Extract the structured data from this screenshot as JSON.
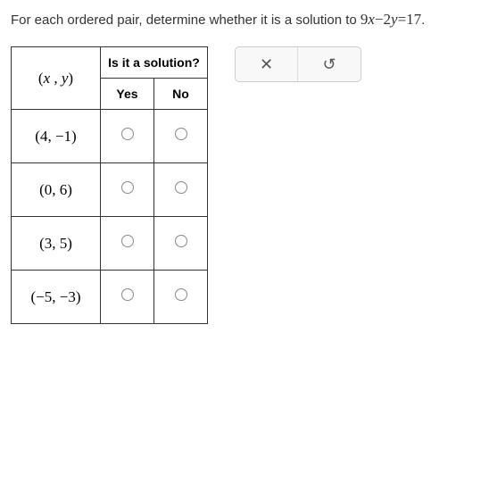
{
  "question": {
    "prefix": "For each ordered pair, determine whether it is a solution to ",
    "equation_lhs_coef1": "9",
    "equation_lhs_var1": "x",
    "equation_lhs_op": "−",
    "equation_lhs_coef2": "2",
    "equation_lhs_var2": "y",
    "equation_eq": "=",
    "equation_rhs": "17",
    "suffix": "."
  },
  "table": {
    "header_pair": "(x , y)",
    "header_pair_open": "(",
    "header_pair_var1": "x",
    "header_pair_comma": " , ",
    "header_pair_var2": "y",
    "header_pair_close": ")",
    "header_solution": "Is it a solution?",
    "header_yes": "Yes",
    "header_no": "No",
    "rows": [
      {
        "pair": "(4, −1)"
      },
      {
        "pair": "(0, 6)"
      },
      {
        "pair": "(3, 5)"
      },
      {
        "pair": "(−5, −3)"
      }
    ]
  },
  "toolbar": {
    "close_glyph": "✕",
    "undo_glyph": "↺"
  },
  "colors": {
    "border": "#333333",
    "radio_border": "#888888",
    "text": "#333333",
    "toolbar_border": "#cccccc",
    "toolbar_bg": "#f8f8f8"
  }
}
